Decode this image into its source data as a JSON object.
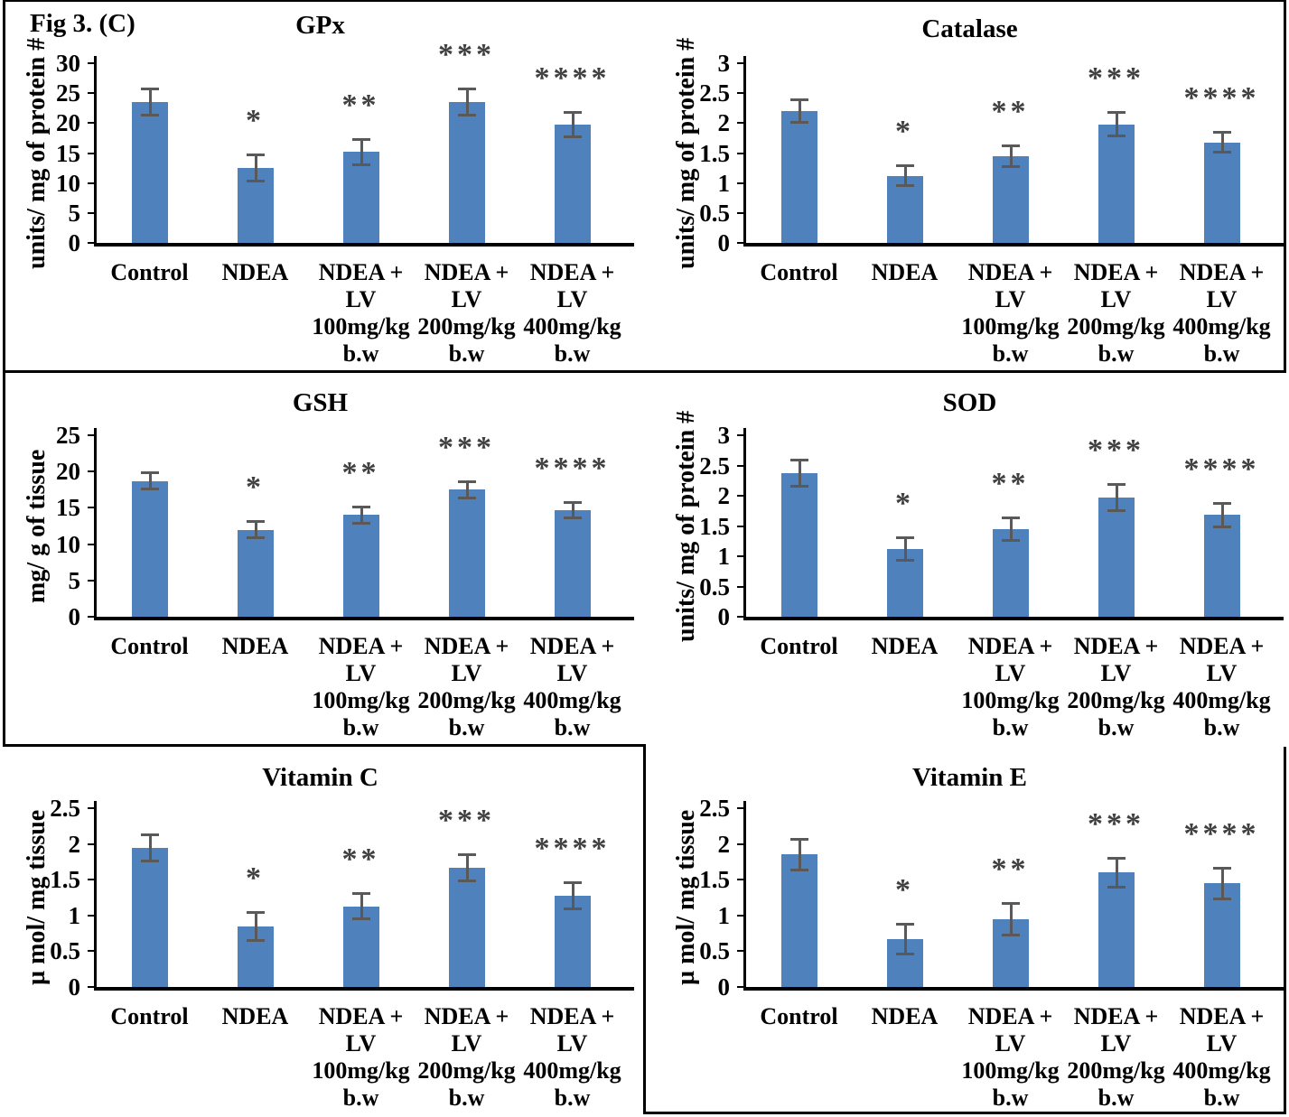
{
  "figure_label": "Fig 3. (C)",
  "colors": {
    "bar": "#4F81BD",
    "error_bar": "#595959",
    "significance": "#404040",
    "axis": "#000000",
    "panel_border": "#000000",
    "background": "#FFFFFF"
  },
  "chart_data": [
    {
      "type": "bar",
      "title": "GPx",
      "ylabel": "units/ mg of protein #",
      "ylim": [
        0,
        30
      ],
      "ytick_step": 5,
      "yticks": [
        "0",
        "5",
        "10",
        "15",
        "20",
        "25",
        "30"
      ],
      "grid": false,
      "legend": "none",
      "categories": [
        "Control",
        "NDEA",
        "NDEA + LV 100mg/kg b.w",
        "NDEA + LV 200mg/kg b.w",
        "NDEA + LV 400mg/kg b.w"
      ],
      "category_lines": [
        [
          "Control"
        ],
        [
          "NDEA"
        ],
        [
          "NDEA +",
          "LV",
          "100mg/kg",
          "b.w"
        ],
        [
          "NDEA +",
          "LV",
          "200mg/kg",
          "b.w"
        ],
        [
          "NDEA +",
          "LV",
          "400mg/kg",
          "b.w"
        ]
      ],
      "values": [
        23.5,
        12.5,
        15.2,
        23.5,
        19.8
      ],
      "errors": [
        2.3,
        2.2,
        2.2,
        2.3,
        2.1
      ],
      "significance": [
        "",
        "*",
        "**",
        "***",
        "****"
      ]
    },
    {
      "type": "bar",
      "title": "Catalase",
      "ylabel": "units/ mg of protein #",
      "ylim": [
        0,
        3
      ],
      "ytick_step": 0.5,
      "yticks": [
        "0",
        "0.5",
        "1",
        "1.5",
        "2",
        "2.5",
        "3"
      ],
      "grid": false,
      "legend": "none",
      "categories": [
        "Control",
        "NDEA",
        "NDEA + LV 100mg/kg b.w",
        "NDEA + LV 200mg/kg b.w",
        "NDEA + LV 400mg/kg b.w"
      ],
      "category_lines": [
        [
          "Control"
        ],
        [
          "NDEA"
        ],
        [
          "NDEA +",
          "LV",
          "100mg/kg",
          "b.w"
        ],
        [
          "NDEA +",
          "LV",
          "200mg/kg",
          "b.w"
        ],
        [
          "NDEA +",
          "LV",
          "400mg/kg",
          "b.w"
        ]
      ],
      "values": [
        2.2,
        1.12,
        1.45,
        1.98,
        1.68
      ],
      "errors": [
        0.2,
        0.17,
        0.18,
        0.2,
        0.17
      ],
      "significance": [
        "",
        "*",
        "**",
        "***",
        "****"
      ]
    },
    {
      "type": "bar",
      "title": "GSH",
      "ylabel": "mg/ g of tissue",
      "ylim": [
        0,
        25
      ],
      "ytick_step": 5,
      "yticks": [
        "0",
        "5",
        "10",
        "15",
        "20",
        "25"
      ],
      "grid": false,
      "legend": "none",
      "categories": [
        "Control",
        "NDEA",
        "NDEA + LV 100mg/kg b.w",
        "NDEA + LV 200mg/kg b.w",
        "NDEA + LV 400mg/kg b.w"
      ],
      "category_lines": [
        [
          "Control"
        ],
        [
          "NDEA"
        ],
        [
          "NDEA +",
          "LV",
          "100mg/kg",
          "b.w"
        ],
        [
          "NDEA +",
          "LV",
          "200mg/kg",
          "b.w"
        ],
        [
          "NDEA +",
          "LV",
          "400mg/kg",
          "b.w"
        ]
      ],
      "values": [
        18.7,
        12.0,
        14.0,
        17.5,
        14.7
      ],
      "errors": [
        1.2,
        1.2,
        1.2,
        1.2,
        1.1
      ],
      "significance": [
        "",
        "*",
        "**",
        "***",
        "****"
      ]
    },
    {
      "type": "bar",
      "title": "SOD",
      "ylabel": "units/ mg of protein #",
      "ylim": [
        0,
        3
      ],
      "ytick_step": 0.5,
      "yticks": [
        "0",
        "0.5",
        "1",
        "1.5",
        "2",
        "2.5",
        "3"
      ],
      "grid": false,
      "legend": "none",
      "categories": [
        "Control",
        "NDEA",
        "NDEA + LV 100mg/kg b.w",
        "NDEA + LV 200mg/kg b.w",
        "NDEA + LV 400mg/kg b.w"
      ],
      "category_lines": [
        [
          "Control"
        ],
        [
          "NDEA"
        ],
        [
          "NDEA +",
          "LV",
          "100mg/kg",
          "b.w"
        ],
        [
          "NDEA +",
          "LV",
          "200mg/kg",
          "b.w"
        ],
        [
          "NDEA +",
          "LV",
          "400mg/kg",
          "b.w"
        ]
      ],
      "values": [
        2.37,
        1.12,
        1.45,
        1.97,
        1.68
      ],
      "errors": [
        0.22,
        0.19,
        0.19,
        0.22,
        0.2
      ],
      "significance": [
        "",
        "*",
        "**",
        "***",
        "****"
      ]
    },
    {
      "type": "bar",
      "title": "Vitamin C",
      "ylabel": "µ mol/ mg tissue",
      "ylim": [
        0,
        2.5
      ],
      "ytick_step": 0.5,
      "yticks": [
        "0",
        "0.5",
        "1",
        "1.5",
        "2",
        "2.5"
      ],
      "grid": false,
      "legend": "none",
      "categories": [
        "Control",
        "NDEA",
        "NDEA + LV 100mg/kg b.w",
        "NDEA + LV 200mg/kg b.w",
        "NDEA + LV 400mg/kg b.w"
      ],
      "category_lines": [
        [
          "Control"
        ],
        [
          "NDEA"
        ],
        [
          "NDEA +",
          "LV",
          "100mg/kg",
          "b.w"
        ],
        [
          "NDEA +",
          "LV",
          "200mg/kg",
          "b.w"
        ],
        [
          "NDEA +",
          "LV",
          "400mg/kg",
          "b.w"
        ]
      ],
      "values": [
        1.95,
        0.85,
        1.13,
        1.67,
        1.28
      ],
      "errors": [
        0.19,
        0.2,
        0.18,
        0.19,
        0.19
      ],
      "significance": [
        "",
        "*",
        "**",
        "***",
        "****"
      ]
    },
    {
      "type": "bar",
      "title": "Vitamin E",
      "ylabel": "µ mol/ mg tissue",
      "ylim": [
        0,
        2.5
      ],
      "ytick_step": 0.5,
      "yticks": [
        "0",
        "0.5",
        "1",
        "1.5",
        "2",
        "2.5"
      ],
      "grid": false,
      "legend": "none",
      "categories": [
        "Control",
        "NDEA",
        "NDEA + LV 100mg/kg b.w",
        "NDEA + LV 200mg/kg b.w",
        "NDEA + LV 400mg/kg b.w"
      ],
      "category_lines": [
        [
          "Control"
        ],
        [
          "NDEA"
        ],
        [
          "NDEA +",
          "LV",
          "100mg/kg",
          "b.w"
        ],
        [
          "NDEA +",
          "LV",
          "200mg/kg",
          "b.w"
        ],
        [
          "NDEA +",
          "LV",
          "400mg/kg",
          "b.w"
        ]
      ],
      "values": [
        1.85,
        0.67,
        0.95,
        1.6,
        1.45
      ],
      "errors": [
        0.22,
        0.22,
        0.23,
        0.21,
        0.22
      ],
      "significance": [
        "",
        "*",
        "**",
        "***",
        "****"
      ]
    }
  ]
}
